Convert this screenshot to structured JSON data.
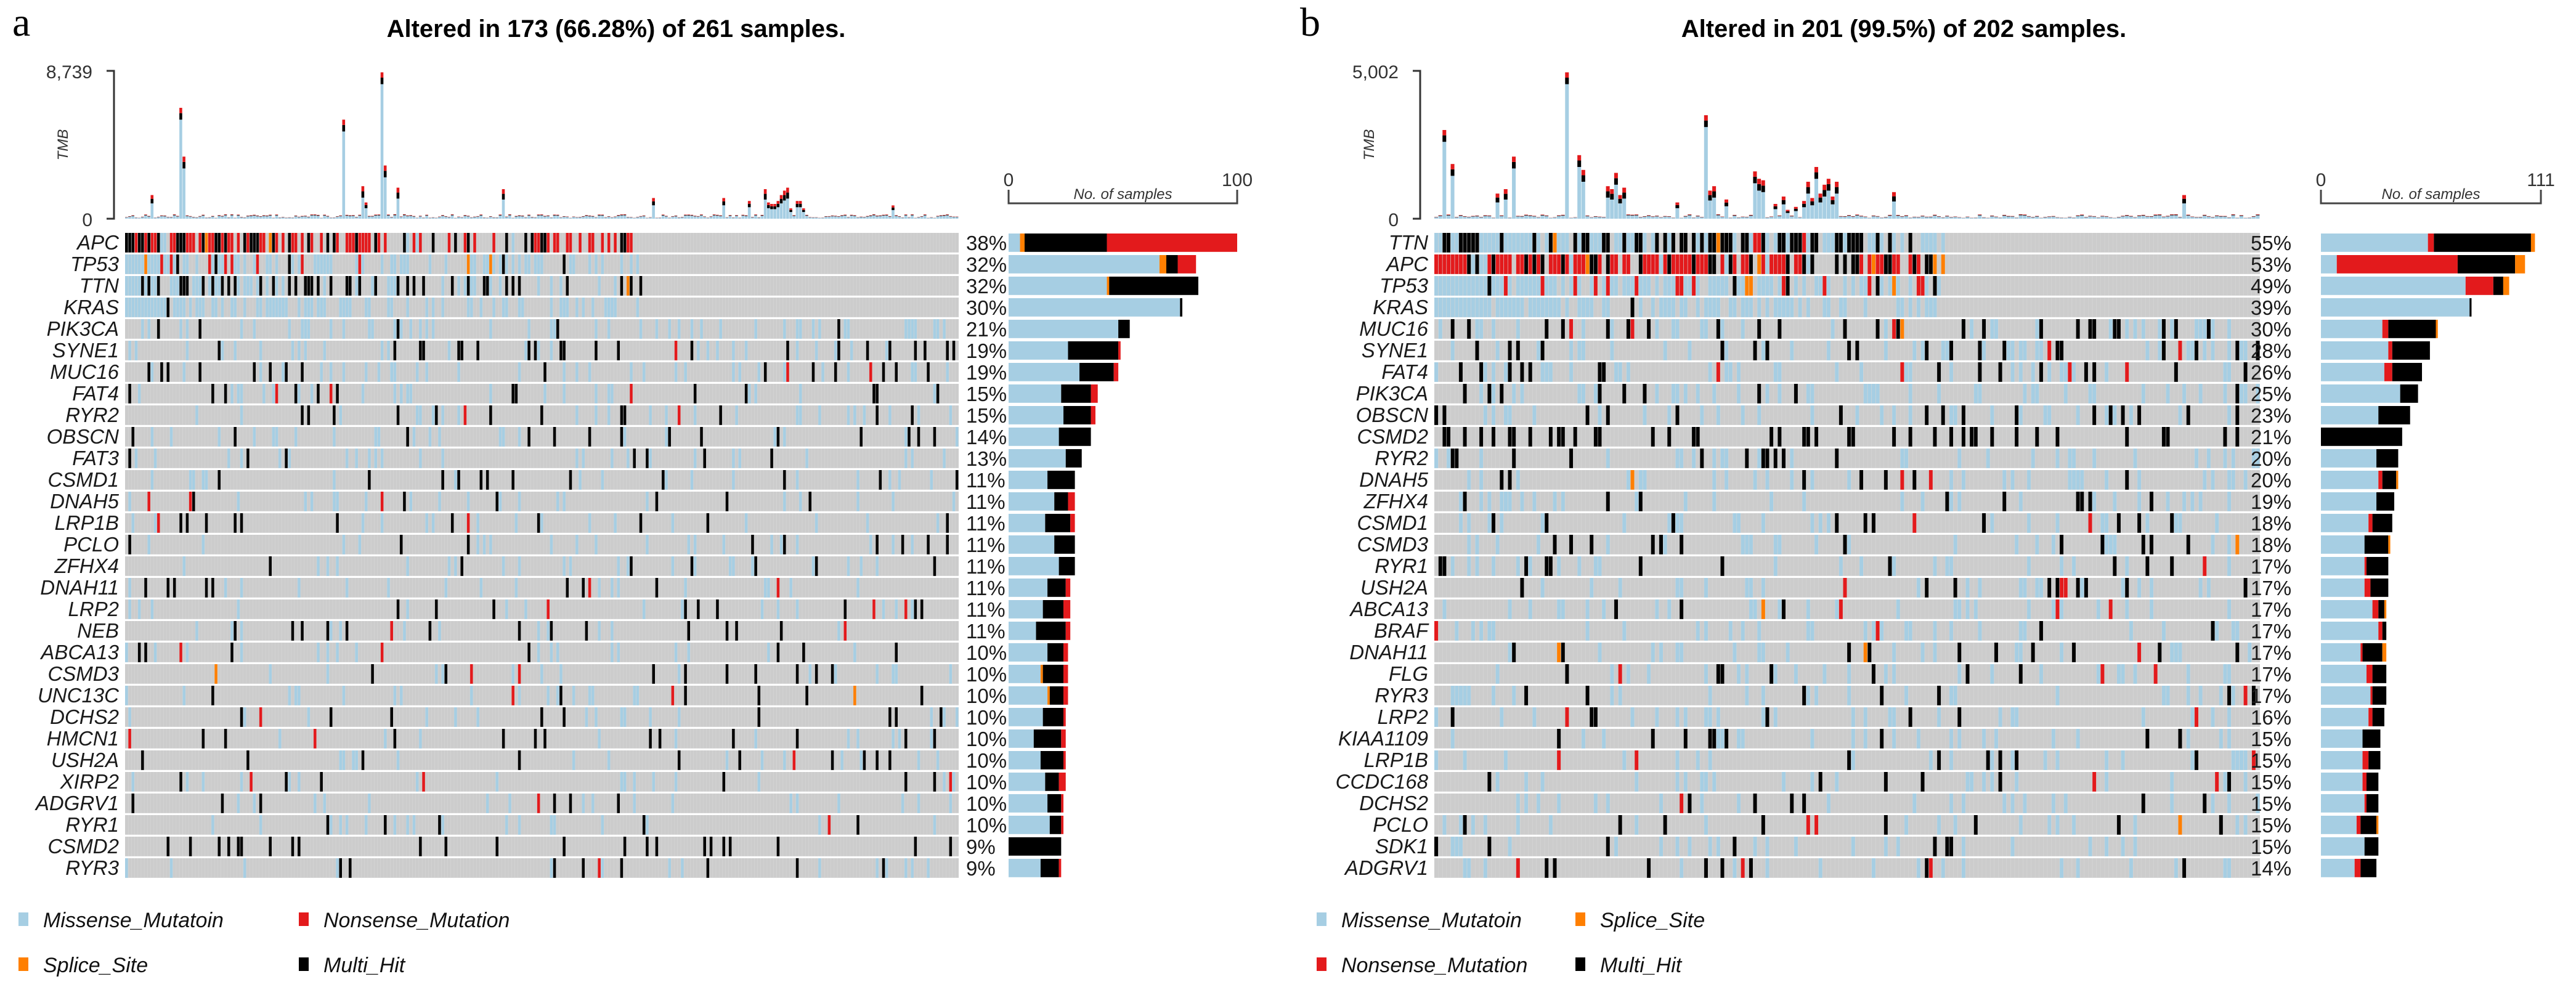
{
  "legend_colors": {
    "Missense_Mutation": "#a6cee3",
    "Nonsense_Mutation": "#e31a1c",
    "Splice_Site": "#ff7f00",
    "Multi_Hit": "#000000",
    "no_alteration": "#cccccc"
  },
  "chart_data": [
    {
      "type": "bar",
      "panel_label": "a",
      "title": "Altered in 173 (66.28%) of 261 samples.",
      "tmb_axis": {
        "label": "TMB",
        "ticks": [
          "8,739",
          "0"
        ],
        "ylim": [
          0,
          8739
        ]
      },
      "samples_axis": {
        "label": "No. of samples",
        "ticks": [
          "0",
          "100"
        ],
        "xlim": [
          0,
          100
        ]
      },
      "n_samples": 261,
      "legend": {
        "placement": "bottom-left",
        "items": [
          {
            "label": "Missense_Mutatoin",
            "key": "Missense_Mutation"
          },
          {
            "label": "Nonsense_Mutation",
            "key": "Nonsense_Mutation"
          },
          {
            "label": "Splice_Site",
            "key": "Splice_Site"
          },
          {
            "label": "Multi_Hit",
            "key": "Multi_Hit"
          }
        ]
      },
      "genes": [
        {
          "name": "APC",
          "pct": "38%",
          "counts": {
            "Missense_Mutation": 5,
            "Splice_Site": 2,
            "Multi_Hit": 36,
            "Nonsense_Mutation": 57
          }
        },
        {
          "name": "TP53",
          "pct": "32%",
          "counts": {
            "Missense_Mutation": 66,
            "Splice_Site": 3,
            "Multi_Hit": 5,
            "Nonsense_Mutation": 8
          }
        },
        {
          "name": "TTN",
          "pct": "32%",
          "counts": {
            "Missense_Mutation": 43,
            "Splice_Site": 1,
            "Multi_Hit": 39,
            "Nonsense_Mutation": 0
          }
        },
        {
          "name": "KRAS",
          "pct": "30%",
          "counts": {
            "Missense_Mutation": 75,
            "Splice_Site": 0,
            "Multi_Hit": 1,
            "Nonsense_Mutation": 0
          }
        },
        {
          "name": "PIK3CA",
          "pct": "21%",
          "counts": {
            "Missense_Mutation": 48,
            "Splice_Site": 0,
            "Multi_Hit": 5,
            "Nonsense_Mutation": 0
          }
        },
        {
          "name": "SYNE1",
          "pct": "19%",
          "counts": {
            "Missense_Mutation": 26,
            "Splice_Site": 0,
            "Multi_Hit": 22,
            "Nonsense_Mutation": 1
          }
        },
        {
          "name": "MUC16",
          "pct": "19%",
          "counts": {
            "Missense_Mutation": 31,
            "Splice_Site": 0,
            "Multi_Hit": 15,
            "Nonsense_Mutation": 2
          }
        },
        {
          "name": "FAT4",
          "pct": "15%",
          "counts": {
            "Missense_Mutation": 23,
            "Splice_Site": 0,
            "Multi_Hit": 13,
            "Nonsense_Mutation": 3
          }
        },
        {
          "name": "RYR2",
          "pct": "15%",
          "counts": {
            "Missense_Mutation": 24,
            "Splice_Site": 0,
            "Multi_Hit": 12,
            "Nonsense_Mutation": 2
          }
        },
        {
          "name": "OBSCN",
          "pct": "14%",
          "counts": {
            "Missense_Mutation": 22,
            "Splice_Site": 0,
            "Multi_Hit": 14,
            "Nonsense_Mutation": 0
          }
        },
        {
          "name": "FAT3",
          "pct": "13%",
          "counts": {
            "Missense_Mutation": 25,
            "Splice_Site": 0,
            "Multi_Hit": 7,
            "Nonsense_Mutation": 0
          }
        },
        {
          "name": "CSMD1",
          "pct": "11%",
          "counts": {
            "Missense_Mutation": 17,
            "Splice_Site": 0,
            "Multi_Hit": 12,
            "Nonsense_Mutation": 0
          }
        },
        {
          "name": "DNAH5",
          "pct": "11%",
          "counts": {
            "Missense_Mutation": 20,
            "Splice_Site": 0,
            "Multi_Hit": 6,
            "Nonsense_Mutation": 3
          }
        },
        {
          "name": "LRP1B",
          "pct": "11%",
          "counts": {
            "Missense_Mutation": 16,
            "Splice_Site": 0,
            "Multi_Hit": 11,
            "Nonsense_Mutation": 2
          }
        },
        {
          "name": "PCLO",
          "pct": "11%",
          "counts": {
            "Missense_Mutation": 20,
            "Splice_Site": 0,
            "Multi_Hit": 9,
            "Nonsense_Mutation": 0
          }
        },
        {
          "name": "ZFHX4",
          "pct": "11%",
          "counts": {
            "Missense_Mutation": 22,
            "Splice_Site": 0,
            "Multi_Hit": 7,
            "Nonsense_Mutation": 0
          }
        },
        {
          "name": "DNAH11",
          "pct": "11%",
          "counts": {
            "Missense_Mutation": 17,
            "Splice_Site": 0,
            "Multi_Hit": 8,
            "Nonsense_Mutation": 2
          }
        },
        {
          "name": "LRP2",
          "pct": "11%",
          "counts": {
            "Missense_Mutation": 15,
            "Splice_Site": 0,
            "Multi_Hit": 9,
            "Nonsense_Mutation": 3
          }
        },
        {
          "name": "NEB",
          "pct": "11%",
          "counts": {
            "Missense_Mutation": 12,
            "Splice_Site": 0,
            "Multi_Hit": 13,
            "Nonsense_Mutation": 2
          }
        },
        {
          "name": "ABCA13",
          "pct": "10%",
          "counts": {
            "Missense_Mutation": 17,
            "Splice_Site": 0,
            "Multi_Hit": 7,
            "Nonsense_Mutation": 2
          }
        },
        {
          "name": "CSMD3",
          "pct": "10%",
          "counts": {
            "Missense_Mutation": 14,
            "Splice_Site": 1,
            "Multi_Hit": 9,
            "Nonsense_Mutation": 2
          }
        },
        {
          "name": "UNC13C",
          "pct": "10%",
          "counts": {
            "Missense_Mutation": 17,
            "Splice_Site": 1,
            "Multi_Hit": 6,
            "Nonsense_Mutation": 2
          }
        },
        {
          "name": "DCHS2",
          "pct": "10%",
          "counts": {
            "Missense_Mutation": 15,
            "Splice_Site": 0,
            "Multi_Hit": 9,
            "Nonsense_Mutation": 1
          }
        },
        {
          "name": "HMCN1",
          "pct": "10%",
          "counts": {
            "Missense_Mutation": 11,
            "Splice_Site": 0,
            "Multi_Hit": 12,
            "Nonsense_Mutation": 2
          }
        },
        {
          "name": "USH2A",
          "pct": "10%",
          "counts": {
            "Missense_Mutation": 14,
            "Splice_Site": 0,
            "Multi_Hit": 10,
            "Nonsense_Mutation": 1
          }
        },
        {
          "name": "XIRP2",
          "pct": "10%",
          "counts": {
            "Missense_Mutation": 16,
            "Splice_Site": 0,
            "Multi_Hit": 6,
            "Nonsense_Mutation": 3
          }
        },
        {
          "name": "ADGRV1",
          "pct": "10%",
          "counts": {
            "Missense_Mutation": 17,
            "Splice_Site": 0,
            "Multi_Hit": 6,
            "Nonsense_Mutation": 1
          }
        },
        {
          "name": "RYR1",
          "pct": "10%",
          "counts": {
            "Missense_Mutation": 18,
            "Splice_Site": 0,
            "Multi_Hit": 5,
            "Nonsense_Mutation": 1
          }
        },
        {
          "name": "CSMD2",
          "pct": "9%",
          "counts": {
            "Missense_Mutation": 0,
            "Splice_Site": 0,
            "Multi_Hit": 23,
            "Nonsense_Mutation": 0
          }
        },
        {
          "name": "RYR3",
          "pct": "9%",
          "counts": {
            "Missense_Mutation": 14,
            "Splice_Site": 0,
            "Multi_Hit": 8,
            "Nonsense_Mutation": 1
          }
        }
      ]
    },
    {
      "type": "bar",
      "panel_label": "b",
      "title": "Altered in 201 (99.5%) of 202 samples.",
      "tmb_axis": {
        "label": "TMB",
        "ticks": [
          "5,002",
          "0"
        ],
        "ylim": [
          0,
          5002
        ]
      },
      "samples_axis": {
        "label": "No. of samples",
        "ticks": [
          "0",
          "111"
        ],
        "xlim": [
          0,
          111
        ]
      },
      "n_samples": 202,
      "legend": {
        "placement": "bottom-left",
        "items": [
          {
            "label": "Missense_Mutatoin",
            "key": "Missense_Mutation"
          },
          {
            "label": "Splice_Site",
            "key": "Splice_Site"
          },
          {
            "label": "Nonsense_Mutation",
            "key": "Nonsense_Mutation"
          },
          {
            "label": "Multi_Hit",
            "key": "Multi_Hit"
          }
        ]
      },
      "genes": [
        {
          "name": "TTN",
          "pct": "55%",
          "counts": {
            "Missense_Mutation": 54,
            "Nonsense_Mutation": 3,
            "Multi_Hit": 49,
            "Splice_Site": 2
          }
        },
        {
          "name": "APC",
          "pct": "53%",
          "counts": {
            "Missense_Mutation": 8,
            "Nonsense_Mutation": 61,
            "Multi_Hit": 29,
            "Splice_Site": 5
          }
        },
        {
          "name": "TP53",
          "pct": "49%",
          "counts": {
            "Missense_Mutation": 73,
            "Nonsense_Mutation": 14,
            "Multi_Hit": 5,
            "Splice_Site": 3
          }
        },
        {
          "name": "KRAS",
          "pct": "39%",
          "counts": {
            "Missense_Mutation": 75,
            "Nonsense_Mutation": 0,
            "Multi_Hit": 1,
            "Splice_Site": 0
          }
        },
        {
          "name": "MUC16",
          "pct": "30%",
          "counts": {
            "Missense_Mutation": 31,
            "Nonsense_Mutation": 3,
            "Multi_Hit": 24,
            "Splice_Site": 1
          }
        },
        {
          "name": "SYNE1",
          "pct": "28%",
          "counts": {
            "Missense_Mutation": 34,
            "Nonsense_Mutation": 2,
            "Multi_Hit": 19,
            "Splice_Site": 0
          }
        },
        {
          "name": "FAT4",
          "pct": "26%",
          "counts": {
            "Missense_Mutation": 32,
            "Nonsense_Mutation": 4,
            "Multi_Hit": 15,
            "Splice_Site": 0
          }
        },
        {
          "name": "PIK3CA",
          "pct": "25%",
          "counts": {
            "Missense_Mutation": 40,
            "Nonsense_Mutation": 0,
            "Multi_Hit": 9,
            "Splice_Site": 0
          }
        },
        {
          "name": "OBSCN",
          "pct": "23%",
          "counts": {
            "Missense_Mutation": 29,
            "Nonsense_Mutation": 0,
            "Multi_Hit": 16,
            "Splice_Site": 0
          }
        },
        {
          "name": "CSMD2",
          "pct": "21%",
          "counts": {
            "Missense_Mutation": 0,
            "Nonsense_Mutation": 0,
            "Multi_Hit": 41,
            "Splice_Site": 0
          }
        },
        {
          "name": "RYR2",
          "pct": "20%",
          "counts": {
            "Missense_Mutation": 28,
            "Nonsense_Mutation": 0,
            "Multi_Hit": 11,
            "Splice_Site": 0
          }
        },
        {
          "name": "DNAH5",
          "pct": "20%",
          "counts": {
            "Missense_Mutation": 29,
            "Nonsense_Mutation": 2,
            "Multi_Hit": 7,
            "Splice_Site": 1
          }
        },
        {
          "name": "ZFHX4",
          "pct": "19%",
          "counts": {
            "Missense_Mutation": 28,
            "Nonsense_Mutation": 0,
            "Multi_Hit": 9,
            "Splice_Site": 0
          }
        },
        {
          "name": "CSMD1",
          "pct": "18%",
          "counts": {
            "Missense_Mutation": 24,
            "Nonsense_Mutation": 2,
            "Multi_Hit": 10,
            "Splice_Site": 0
          }
        },
        {
          "name": "CSMD3",
          "pct": "18%",
          "counts": {
            "Missense_Mutation": 22,
            "Nonsense_Mutation": 0,
            "Multi_Hit": 12,
            "Splice_Site": 1
          }
        },
        {
          "name": "RYR1",
          "pct": "17%",
          "counts": {
            "Missense_Mutation": 22,
            "Nonsense_Mutation": 1,
            "Multi_Hit": 11,
            "Splice_Site": 0
          }
        },
        {
          "name": "USH2A",
          "pct": "17%",
          "counts": {
            "Missense_Mutation": 22,
            "Nonsense_Mutation": 3,
            "Multi_Hit": 9,
            "Splice_Site": 0
          }
        },
        {
          "name": "ABCA13",
          "pct": "17%",
          "counts": {
            "Missense_Mutation": 26,
            "Nonsense_Mutation": 3,
            "Multi_Hit": 3,
            "Splice_Site": 1
          }
        },
        {
          "name": "BRAF",
          "pct": "17%",
          "counts": {
            "Missense_Mutation": 29,
            "Nonsense_Mutation": 2,
            "Multi_Hit": 2,
            "Splice_Site": 0
          }
        },
        {
          "name": "DNAH11",
          "pct": "17%",
          "counts": {
            "Missense_Mutation": 20,
            "Nonsense_Mutation": 1,
            "Multi_Hit": 10,
            "Splice_Site": 2
          }
        },
        {
          "name": "FLG",
          "pct": "17%",
          "counts": {
            "Missense_Mutation": 23,
            "Nonsense_Mutation": 3,
            "Multi_Hit": 7,
            "Splice_Site": 0
          }
        },
        {
          "name": "RYR3",
          "pct": "17%",
          "counts": {
            "Missense_Mutation": 25,
            "Nonsense_Mutation": 1,
            "Multi_Hit": 7,
            "Splice_Site": 0
          }
        },
        {
          "name": "LRP2",
          "pct": "16%",
          "counts": {
            "Missense_Mutation": 24,
            "Nonsense_Mutation": 2,
            "Multi_Hit": 6,
            "Splice_Site": 0
          }
        },
        {
          "name": "KIAA1109",
          "pct": "15%",
          "counts": {
            "Missense_Mutation": 21,
            "Nonsense_Mutation": 0,
            "Multi_Hit": 9,
            "Splice_Site": 0
          }
        },
        {
          "name": "LRP1B",
          "pct": "15%",
          "counts": {
            "Missense_Mutation": 21,
            "Nonsense_Mutation": 3,
            "Multi_Hit": 6,
            "Splice_Site": 0
          }
        },
        {
          "name": "CCDC168",
          "pct": "15%",
          "counts": {
            "Missense_Mutation": 21,
            "Nonsense_Mutation": 2,
            "Multi_Hit": 6,
            "Splice_Site": 0
          }
        },
        {
          "name": "DCHS2",
          "pct": "15%",
          "counts": {
            "Missense_Mutation": 22,
            "Nonsense_Mutation": 1,
            "Multi_Hit": 6,
            "Splice_Site": 0
          }
        },
        {
          "name": "PCLO",
          "pct": "15%",
          "counts": {
            "Missense_Mutation": 18,
            "Nonsense_Mutation": 2,
            "Multi_Hit": 8,
            "Splice_Site": 1
          }
        },
        {
          "name": "SDK1",
          "pct": "15%",
          "counts": {
            "Missense_Mutation": 22,
            "Nonsense_Mutation": 0,
            "Multi_Hit": 7,
            "Splice_Site": 0
          }
        },
        {
          "name": "ADGRV1",
          "pct": "14%",
          "counts": {
            "Missense_Mutation": 17,
            "Nonsense_Mutation": 3,
            "Multi_Hit": 8,
            "Splice_Site": 0
          }
        }
      ]
    }
  ]
}
